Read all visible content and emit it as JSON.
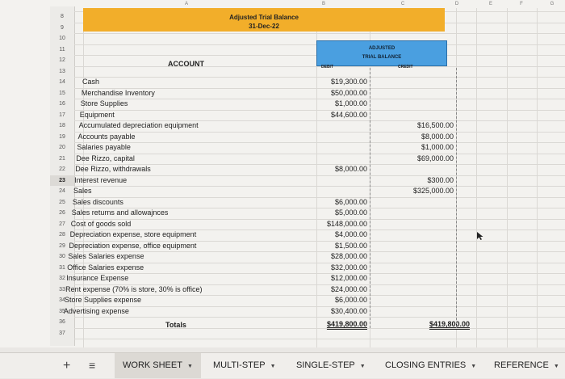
{
  "columns": [
    "A",
    "B",
    "C",
    "D",
    "E",
    "F",
    "G"
  ],
  "header": {
    "title": "Adjusted Trial Balance",
    "date": "31-Dec-22"
  },
  "tb_header": {
    "line1": "ADJUSTED",
    "line2": "TRIAL BALANCE",
    "debit": "DEBIT",
    "credit": "CREDIT"
  },
  "account_header": "ACCOUNT",
  "rows": [
    "8",
    "9",
    "10",
    "11",
    "12",
    "13",
    "14",
    "15",
    "16",
    "17",
    "18",
    "19",
    "20",
    "21",
    "22",
    "23",
    "24",
    "25",
    "26",
    "27",
    "28",
    "29",
    "30",
    "31",
    "32",
    "33",
    "34",
    "35",
    "36",
    "37"
  ],
  "accounts": [
    {
      "name": "Cash",
      "debit": "$19,300.00",
      "credit": ""
    },
    {
      "name": "Merchandise Inventory",
      "debit": "$50,000.00",
      "credit": ""
    },
    {
      "name": "Store Supplies",
      "debit": "$1,000.00",
      "credit": ""
    },
    {
      "name": "Equipment",
      "debit": "$44,600.00",
      "credit": ""
    },
    {
      "name": "Accumulated depreciation equipment",
      "debit": "",
      "credit": "$16,500.00"
    },
    {
      "name": "Accounts payable",
      "debit": "",
      "credit": "$8,000.00"
    },
    {
      "name": "Salaries payable",
      "debit": "",
      "credit": "$1,000.00"
    },
    {
      "name": "Dee Rizzo, capital",
      "debit": "",
      "credit": "$69,000.00"
    },
    {
      "name": "Dee Rizzo, withdrawals",
      "debit": "$8,000.00",
      "credit": ""
    },
    {
      "name": "Interest revenue",
      "debit": "",
      "credit": "$300.00"
    },
    {
      "name": "Sales",
      "debit": "",
      "credit": "$325,000.00"
    },
    {
      "name": "Sales discounts",
      "debit": "$6,000.00",
      "credit": ""
    },
    {
      "name": "Sales returns and allowajnces",
      "debit": "$5,000.00",
      "credit": ""
    },
    {
      "name": "Cost of goods sold",
      "debit": "$148,000.00",
      "credit": ""
    },
    {
      "name": "Depreciation expense, store equipment",
      "debit": "$4,000.00",
      "credit": ""
    },
    {
      "name": "Depreciation expense, office equipment",
      "debit": "$1,500.00",
      "credit": ""
    },
    {
      "name": "Sales Salaries expense",
      "debit": "$28,000.00",
      "credit": ""
    },
    {
      "name": "Office Salaries expense",
      "debit": "$32,000.00",
      "credit": ""
    },
    {
      "name": "Insurance Expense",
      "debit": "$12,000.00",
      "credit": ""
    },
    {
      "name": "Rent expense (70% is store, 30% is office)",
      "debit": "$24,000.00",
      "credit": ""
    },
    {
      "name": "Store Supplies expense",
      "debit": "$6,000.00",
      "credit": ""
    },
    {
      "name": "Advertising expense",
      "debit": "$30,400.00",
      "credit": ""
    }
  ],
  "totals": {
    "label": "Totals",
    "debit": "$419,800.00",
    "credit": "$419,800.00"
  },
  "tabs": {
    "worksheet": "WORK SHEET",
    "multistep": "MULTI-STEP",
    "singlestep": "SINGLE-STEP",
    "closing": "CLOSING ENTRIES",
    "reference": "REFERENCE"
  },
  "colors": {
    "title_band": "#f2ae2a",
    "tb_header": "#4a9fe0"
  }
}
